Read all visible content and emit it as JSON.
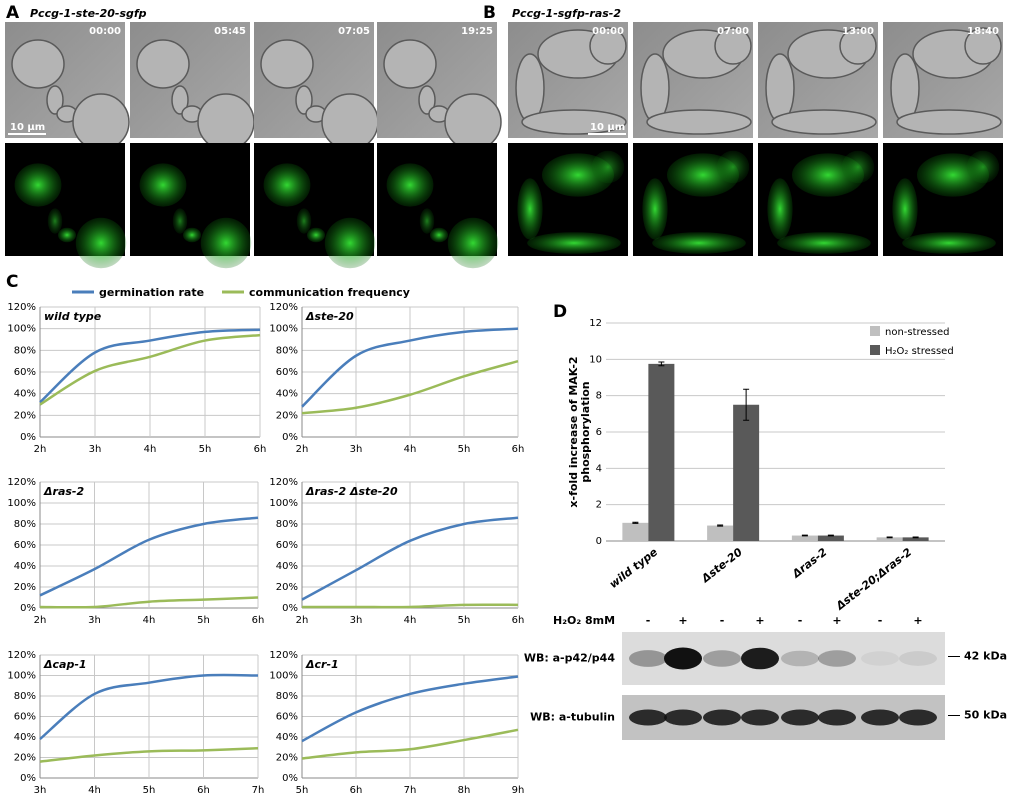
{
  "panel_a": {
    "label": "A",
    "title": "Pccg-1-ste-20-sgfp",
    "timestamps": [
      "00:00",
      "05:45",
      "07:05",
      "19:25"
    ],
    "scale_bar": "10 μm"
  },
  "panel_b": {
    "label": "B",
    "title": "Pccg-1-sgfp-ras-2",
    "timestamps": [
      "00:00",
      "07:00",
      "13:00",
      "18:40"
    ],
    "scale_bar": "10 μm"
  },
  "panel_c": {
    "label": "C",
    "legend": [
      {
        "name": "germination rate",
        "color": "#4a7ebb"
      },
      {
        "name": "communication frequency",
        "color": "#9bbb59"
      }
    ]
  },
  "panel_d": {
    "label": "D"
  },
  "blot": {
    "treatment": "H₂O₂ 8mM",
    "lanes": [
      "-",
      "+",
      "-",
      "+",
      "-",
      "+",
      "-",
      "+"
    ],
    "rows": [
      {
        "label": "WB: a-p42/p44",
        "size": "42 kDa"
      },
      {
        "label": "WB: a-tubulin",
        "size": "50 kDa"
      }
    ]
  },
  "chart_data": [
    {
      "type": "line",
      "title": "wild type",
      "categories": [
        "2h",
        "3h",
        "4h",
        "5h",
        "6h"
      ],
      "series": [
        {
          "color": "#4a7ebb",
          "values": [
            32,
            78,
            89,
            97,
            99
          ]
        },
        {
          "color": "#9bbb59",
          "values": [
            30,
            61,
            74,
            89,
            94
          ]
        }
      ],
      "ylim": [
        0,
        120
      ],
      "yticks": [
        {
          "value": 0,
          "label": "0%"
        },
        {
          "value": 20,
          "label": "20%"
        },
        {
          "value": 40,
          "label": "40%"
        },
        {
          "value": 60,
          "label": "60%"
        },
        {
          "value": 80,
          "label": "80%"
        },
        {
          "value": 100,
          "label": "100%"
        },
        {
          "value": 120,
          "label": "120%"
        }
      ],
      "grid": true
    },
    {
      "type": "line",
      "title": "Δste-20",
      "categories": [
        "2h",
        "3h",
        "4h",
        "5h",
        "6h"
      ],
      "series": [
        {
          "color": "#4a7ebb",
          "values": [
            28,
            75,
            89,
            97,
            100
          ]
        },
        {
          "color": "#9bbb59",
          "values": [
            22,
            27,
            39,
            56,
            70
          ]
        }
      ],
      "ylim": [
        0,
        120
      ],
      "yticks": [
        {
          "value": 0,
          "label": "0%"
        },
        {
          "value": 20,
          "label": "20%"
        },
        {
          "value": 40,
          "label": "40%"
        },
        {
          "value": 60,
          "label": "60%"
        },
        {
          "value": 80,
          "label": "80%"
        },
        {
          "value": 100,
          "label": "100%"
        },
        {
          "value": 120,
          "label": "120%"
        }
      ],
      "grid": true
    },
    {
      "type": "line",
      "title": "Δras-2",
      "categories": [
        "2h",
        "3h",
        "4h",
        "5h",
        "6h"
      ],
      "series": [
        {
          "color": "#4a7ebb",
          "values": [
            12,
            37,
            65,
            80,
            86
          ]
        },
        {
          "color": "#9bbb59",
          "values": [
            1,
            1,
            6,
            8,
            10
          ]
        }
      ],
      "ylim": [
        0,
        120
      ],
      "yticks": [
        {
          "value": 0,
          "label": "0%"
        },
        {
          "value": 20,
          "label": "20%"
        },
        {
          "value": 40,
          "label": "40%"
        },
        {
          "value": 60,
          "label": "60%"
        },
        {
          "value": 80,
          "label": "80%"
        },
        {
          "value": 100,
          "label": "100%"
        },
        {
          "value": 120,
          "label": "120%"
        }
      ],
      "grid": true
    },
    {
      "type": "line",
      "title": "Δras-2 Δste-20",
      "categories": [
        "2h",
        "3h",
        "4h",
        "5h",
        "6h"
      ],
      "series": [
        {
          "color": "#4a7ebb",
          "values": [
            8,
            36,
            64,
            80,
            86
          ]
        },
        {
          "color": "#9bbb59",
          "values": [
            1,
            1,
            1,
            3,
            3
          ]
        }
      ],
      "ylim": [
        0,
        120
      ],
      "yticks": [
        {
          "value": 0,
          "label": "0%"
        },
        {
          "value": 20,
          "label": "20%"
        },
        {
          "value": 40,
          "label": "40%"
        },
        {
          "value": 60,
          "label": "60%"
        },
        {
          "value": 80,
          "label": "80%"
        },
        {
          "value": 100,
          "label": "100%"
        },
        {
          "value": 120,
          "label": "120%"
        }
      ],
      "grid": true
    },
    {
      "type": "line",
      "title": "Δcap-1",
      "categories": [
        "3h",
        "4h",
        "5h",
        "6h",
        "7h"
      ],
      "series": [
        {
          "color": "#4a7ebb",
          "values": [
            38,
            82,
            93,
            100,
            100
          ]
        },
        {
          "color": "#9bbb59",
          "values": [
            16,
            22,
            26,
            27,
            29
          ]
        }
      ],
      "ylim": [
        0,
        120
      ],
      "yticks": [
        {
          "value": 0,
          "label": "0%"
        },
        {
          "value": 20,
          "label": "20%"
        },
        {
          "value": 40,
          "label": "40%"
        },
        {
          "value": 60,
          "label": "60%"
        },
        {
          "value": 80,
          "label": "80%"
        },
        {
          "value": 100,
          "label": "100%"
        },
        {
          "value": 120,
          "label": "120%"
        }
      ],
      "grid": true
    },
    {
      "type": "line",
      "title": "Δcr-1",
      "categories": [
        "5h",
        "6h",
        "7h",
        "8h",
        "9h"
      ],
      "series": [
        {
          "color": "#4a7ebb",
          "values": [
            36,
            64,
            82,
            92,
            99
          ]
        },
        {
          "color": "#9bbb59",
          "values": [
            19,
            25,
            28,
            37,
            47
          ]
        }
      ],
      "ylim": [
        0,
        120
      ],
      "yticks": [
        {
          "value": 0,
          "label": "0%"
        },
        {
          "value": 20,
          "label": "20%"
        },
        {
          "value": 40,
          "label": "40%"
        },
        {
          "value": 60,
          "label": "60%"
        },
        {
          "value": 80,
          "label": "80%"
        },
        {
          "value": 100,
          "label": "100%"
        },
        {
          "value": 120,
          "label": "120%"
        }
      ],
      "grid": true
    },
    {
      "type": "bar",
      "ylabel": [
        "x-fold increase of MAK-2",
        "phosphorylation"
      ],
      "categories": [
        "wild type",
        "Δste-20",
        "Δras-2",
        "Δste-20;Δras-2"
      ],
      "series": [
        {
          "name": "non-stressed",
          "color": "#bfbfbf",
          "values": [
            1.0,
            0.85,
            0.3,
            0.2
          ],
          "errors": [
            0.03,
            0.03,
            0.02,
            0.02
          ]
        },
        {
          "name": "H₂O₂ stressed",
          "color": "#595959",
          "values": [
            9.75,
            7.5,
            0.3,
            0.2
          ],
          "errors": [
            0.1,
            0.85,
            0.02,
            0.02
          ]
        }
      ],
      "ylim": [
        0,
        12
      ],
      "yticks": [
        0,
        2,
        4,
        6,
        8,
        10,
        12
      ],
      "grid": true
    }
  ]
}
